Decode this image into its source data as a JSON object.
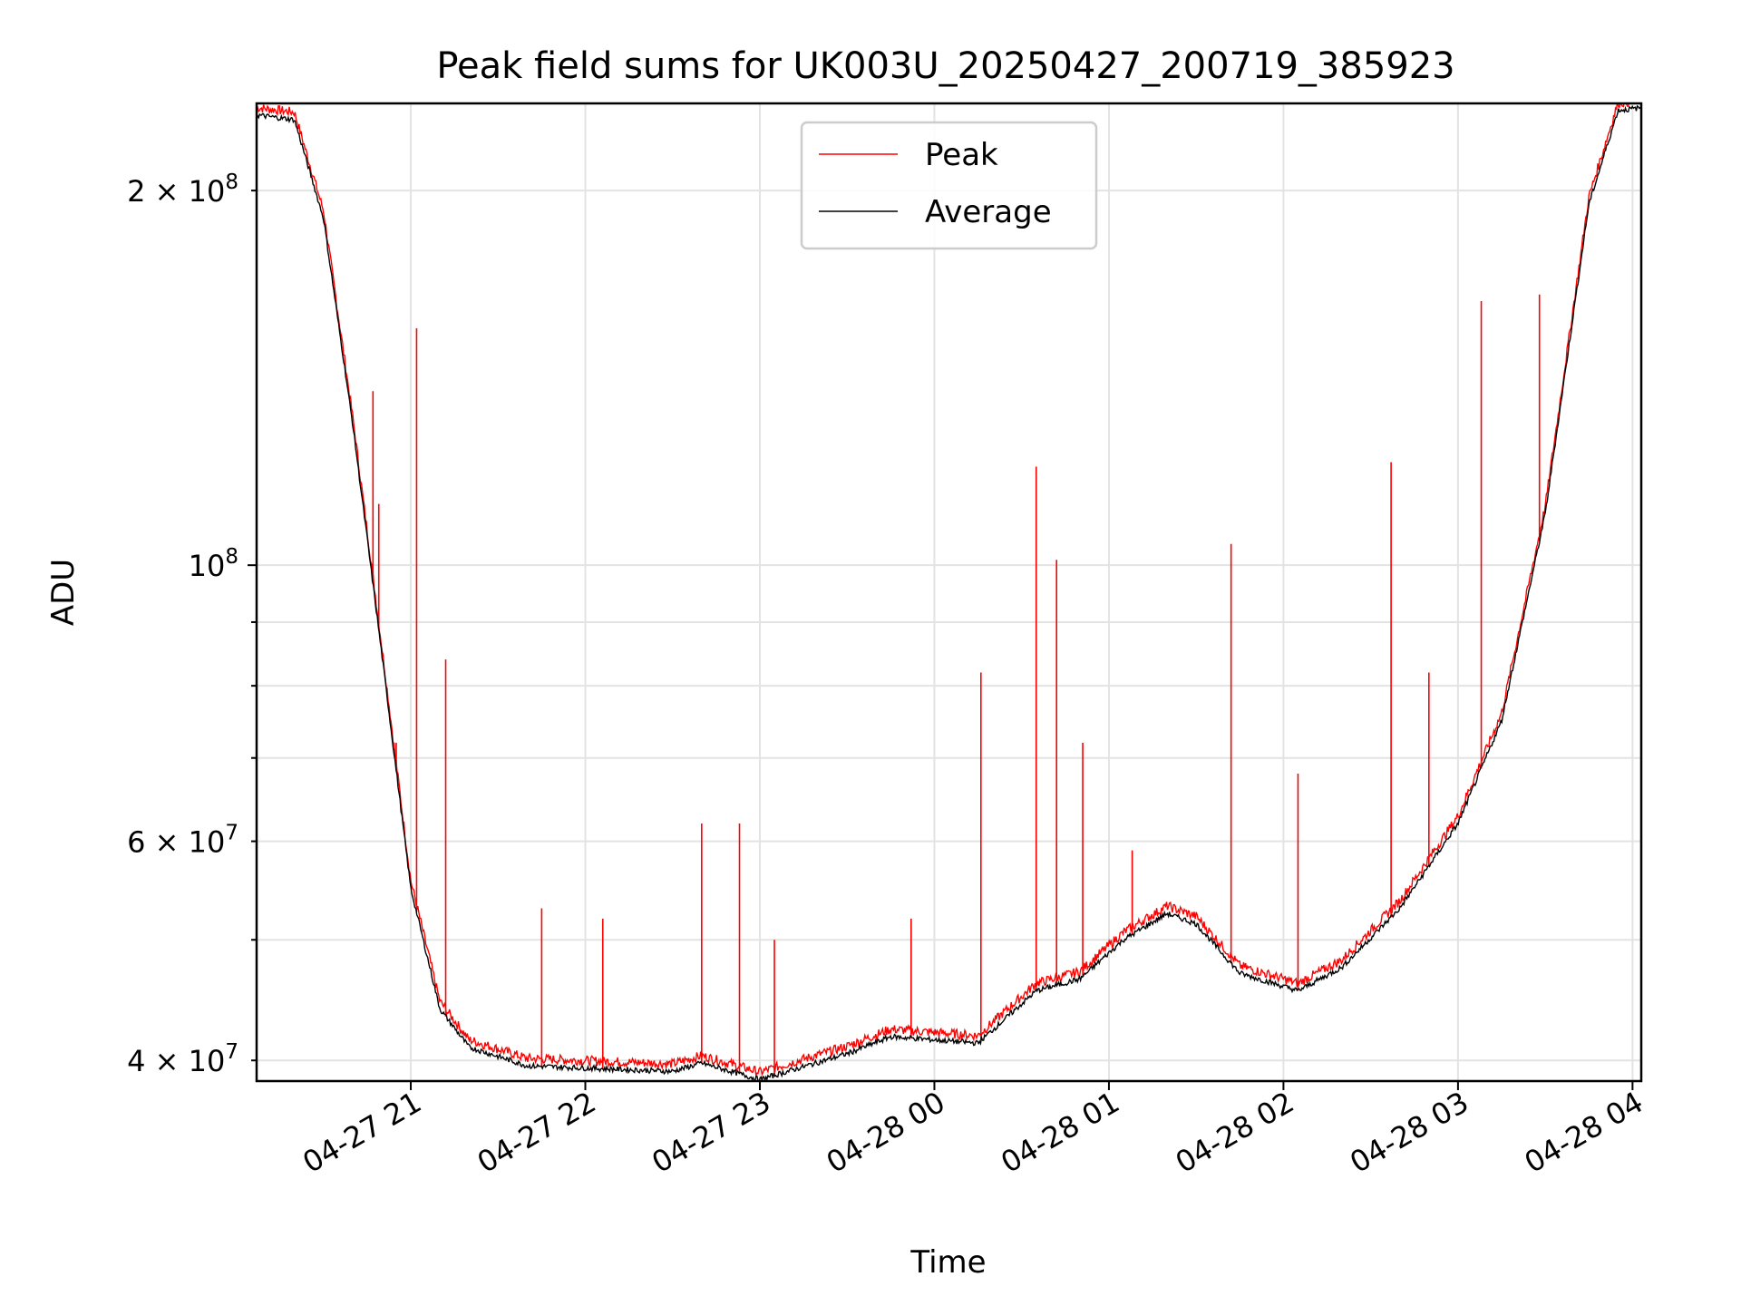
{
  "chart_data": {
    "type": "line",
    "title": "Peak field sums for UK003U_20250427_200719_385923",
    "xlabel": "Time",
    "ylabel": "ADU",
    "x_is_time": true,
    "xlim": [
      "2025-04-27T20:07:00",
      "2025-04-28T04:03:00"
    ],
    "ylim": [
      38500000,
      235000000
    ],
    "y_scale": "log",
    "grid": true,
    "legend_position": "upper-center",
    "x_ticks": [
      "2025-04-27T21:00:00",
      "2025-04-27T22:00:00",
      "2025-04-27T23:00:00",
      "2025-04-28T00:00:00",
      "2025-04-28T01:00:00",
      "2025-04-28T02:00:00",
      "2025-04-28T03:00:00",
      "2025-04-28T04:00:00"
    ],
    "x_tick_labels": [
      "04-27 21",
      "04-27 22",
      "04-27 23",
      "04-28 00",
      "04-28 01",
      "04-28 02",
      "04-28 03",
      "04-28 04"
    ],
    "y_major_ticks": [
      100000000
    ],
    "y_major_tick_labels": [
      "10^8"
    ],
    "y_minor_ticks": [
      40000000,
      50000000,
      60000000,
      70000000,
      80000000,
      90000000,
      200000000
    ],
    "y_minor_tick_labels": [
      "4×10^7",
      "",
      "6×10^7",
      "",
      "",
      "",
      "2×10^8"
    ],
    "series": [
      {
        "name": "Peak",
        "color": "#ff0000",
        "spikes": [
          {
            "x": "2025-04-27T20:47:00",
            "y": 138000000
          },
          {
            "x": "2025-04-27T20:49:00",
            "y": 112000000
          },
          {
            "x": "2025-04-27T21:02:00",
            "y": 155000000
          },
          {
            "x": "2025-04-27T21:12:00",
            "y": 84000000
          },
          {
            "x": "2025-04-27T20:55:00",
            "y": 72000000
          },
          {
            "x": "2025-04-27T21:45:00",
            "y": 53000000
          },
          {
            "x": "2025-04-27T22:06:00",
            "y": 52000000
          },
          {
            "x": "2025-04-27T22:40:00",
            "y": 62000000
          },
          {
            "x": "2025-04-27T22:53:00",
            "y": 62000000
          },
          {
            "x": "2025-04-27T23:05:00",
            "y": 50000000
          },
          {
            "x": "2025-04-27T23:52:00",
            "y": 52000000
          },
          {
            "x": "2025-04-28T00:16:00",
            "y": 82000000
          },
          {
            "x": "2025-04-28T00:35:00",
            "y": 120000000
          },
          {
            "x": "2025-04-28T00:42:00",
            "y": 101000000
          },
          {
            "x": "2025-04-28T00:51:00",
            "y": 72000000
          },
          {
            "x": "2025-04-28T01:08:00",
            "y": 59000000
          },
          {
            "x": "2025-04-28T01:42:00",
            "y": 104000000
          },
          {
            "x": "2025-04-28T02:05:00",
            "y": 68000000
          },
          {
            "x": "2025-04-28T02:37:00",
            "y": 121000000
          },
          {
            "x": "2025-04-28T02:50:00",
            "y": 82000000
          },
          {
            "x": "2025-04-28T03:08:00",
            "y": 163000000
          },
          {
            "x": "2025-04-28T03:28:00",
            "y": 165000000
          }
        ]
      },
      {
        "name": "Average",
        "color": "#000000",
        "points": [
          {
            "x": "2025-04-27T20:07:00",
            "y": 230000000
          },
          {
            "x": "2025-04-27T20:20:00",
            "y": 228000000
          },
          {
            "x": "2025-04-27T20:30:00",
            "y": 190000000
          },
          {
            "x": "2025-04-27T20:40:00",
            "y": 130000000
          },
          {
            "x": "2025-04-27T20:50:00",
            "y": 85000000
          },
          {
            "x": "2025-04-27T21:00:00",
            "y": 55000000
          },
          {
            "x": "2025-04-27T21:10:00",
            "y": 44000000
          },
          {
            "x": "2025-04-27T21:20:00",
            "y": 41000000
          },
          {
            "x": "2025-04-27T21:40:00",
            "y": 39600000
          },
          {
            "x": "2025-04-27T22:30:00",
            "y": 39200000
          },
          {
            "x": "2025-04-27T22:40:00",
            "y": 39800000
          },
          {
            "x": "2025-04-27T23:00:00",
            "y": 38600000
          },
          {
            "x": "2025-04-27T23:30:00",
            "y": 40500000
          },
          {
            "x": "2025-04-27T23:45:00",
            "y": 41800000
          },
          {
            "x": "2025-04-28T00:15:00",
            "y": 41300000
          },
          {
            "x": "2025-04-28T00:35:00",
            "y": 45500000
          },
          {
            "x": "2025-04-28T00:50:00",
            "y": 46500000
          },
          {
            "x": "2025-04-28T01:05:00",
            "y": 50000000
          },
          {
            "x": "2025-04-28T01:20:00",
            "y": 52500000
          },
          {
            "x": "2025-04-28T01:30:00",
            "y": 51500000
          },
          {
            "x": "2025-04-28T01:45:00",
            "y": 47000000
          },
          {
            "x": "2025-04-28T02:05:00",
            "y": 45500000
          },
          {
            "x": "2025-04-28T02:20:00",
            "y": 47500000
          },
          {
            "x": "2025-04-28T02:40:00",
            "y": 53000000
          },
          {
            "x": "2025-04-28T03:00:00",
            "y": 62000000
          },
          {
            "x": "2025-04-28T03:15:00",
            "y": 75000000
          },
          {
            "x": "2025-04-28T03:30:00",
            "y": 110000000
          },
          {
            "x": "2025-04-28T03:45:00",
            "y": 195000000
          },
          {
            "x": "2025-04-28T03:55:00",
            "y": 232000000
          },
          {
            "x": "2025-04-28T04:03:00",
            "y": 233000000
          }
        ]
      }
    ]
  }
}
